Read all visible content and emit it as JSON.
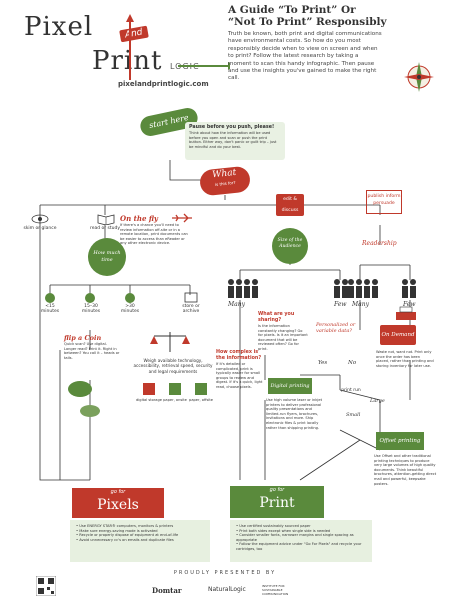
{
  "logo": {
    "word1": "Pixel",
    "word_and": "And",
    "word2": "Print",
    "word3": "LOGIC",
    "url": "pixelandprintlogic.com"
  },
  "header": {
    "title_line1": "A Guide “To Print” Or",
    "title_line2": "“Not To Print” Responsibly",
    "intro": "Truth be known, both print and digital communications have environmental costs. So how do you most responsibly decide when to view on screen and when to print? Follow the latest research by taking a moment to scan this handy infographic. Then pause and use the insights you've gained to make the right call."
  },
  "flow": {
    "start_here": "start here",
    "pause_title": "Pause before you push, please!",
    "pause_text": "Think about how the information will be used before you open and scan or push the print button. Either way, don't panic or guilt trip – just be mindful and do your best.",
    "what_for": "What",
    "what_for2": "is this for?",
    "skim": "skim or glance",
    "read_study": "read or study",
    "edit_discuss": "edit & discuss",
    "publish": "publish inform persuade",
    "on_the_fly": "On the fly",
    "on_the_fly_text": "If there's a chance you'll need to review information off-site or in a remote location, print documents can be easier to access than eReader or any other electronic device.",
    "how_much_time": "How much time",
    "lt15": "<15 minutes",
    "m15_30": "15–30 minutes",
    "gt30": ">30 minutes",
    "store_archive": "store or archive",
    "flip_coin_title": "flip a Coin",
    "flip_coin_text": "Quick scan? Use digital. Longer read? Print it. Right in between? You call it – heads or tails.",
    "weigh_text": "Weigh available technology, accessibility, retrieval speed, security and legal requirements",
    "digital_storage": "digital storage",
    "paper_onsite": "paper, onsite",
    "paper_offsite": "paper, offsite",
    "how_complex": "How complex is the information?",
    "how_complex_text": "If it's detailed or complicated, print is typically easier for small groups to review and digest. If it's a quick, light read, choose pixels.",
    "size_of_audience": "Size of the Audience",
    "many": "Many",
    "few": "Few",
    "what_sharing_title": "What are you sharing?",
    "what_sharing_text": "Is the information constantly changing? Go for pixels. Is it an important document that will be reviewed often? Go for print.",
    "readership": "Readership",
    "personalized": "Personalized or variable data?",
    "yes": "Yes",
    "no": "No",
    "use_digital_title": "Digital printing",
    "use_digital_text": "Use high volume laser or inkjet printers to deliver professional quality presentations and limited-run flyers, brochures, invitations and more. Ship electronic files & print locally rather than shipping printing.",
    "print_run": "print run",
    "large": "Large",
    "small": "Small",
    "on_demand_title": "On Demand",
    "on_demand_text": "Waste not, want not. Print only once the order has been placed, rather than printing and storing inventory for later use.",
    "offset_title": "Offset printing",
    "offset_text": "Use Offset and other traditional printing techniques to produce very large volumes of high quality documents. Think beautiful brochures, attention-getting direct mail and powerful, keepsake posters."
  },
  "go_pixels": {
    "go_for": "go for",
    "label": "Pixels",
    "bullets": [
      "• Use ENERGY STAR® computers, monitors & printers",
      "• Make sure energy-saving mode is activated",
      "• Recycle or properly dispose of equipment at end-of-life",
      "• Avoid unnecessary cc's on emails and duplicate files"
    ]
  },
  "go_print": {
    "go_for": "go for",
    "label": "Print",
    "bullets": [
      "• Use certified sustainably sourced paper",
      "• Print both sides except when single side is needed",
      "• Consider smaller fonts, narrower margins and single spacing as appropriate",
      "• Follow the equipment advice under \"Go For Pixels\" and recycle your cartridges, too"
    ]
  },
  "footer": {
    "presented_by": "PROUDLY PRESENTED BY",
    "sponsor1": "Domtar",
    "sponsor2": "NaturalLogic",
    "sponsor3": "INSTITUTE FOR SUSTAINABLE COMMUNICATION"
  },
  "colors": {
    "green": "#5a8a3c",
    "red": "#c0392b",
    "light_green": "#e7f0e0"
  }
}
